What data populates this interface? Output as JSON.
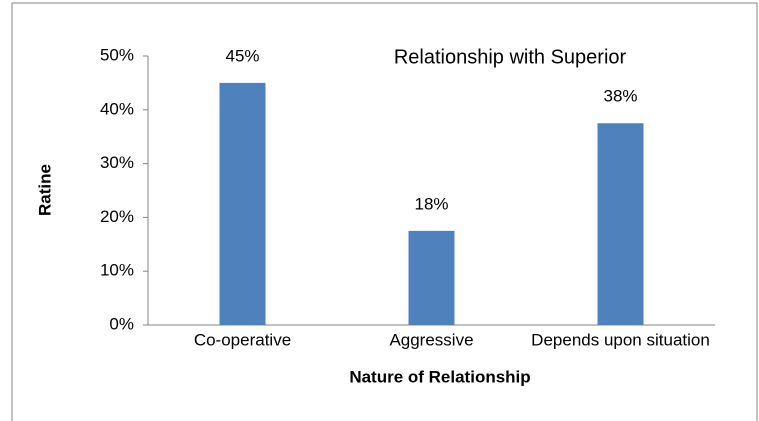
{
  "chart_data": {
    "type": "bar",
    "title": "Relationship with Superior",
    "x_label": "Nature of Relationship",
    "y_label": "Ratine",
    "categories": [
      "Co-operative",
      "Aggressive",
      "Depends upon situation"
    ],
    "values": [
      45,
      17.5,
      37.5
    ],
    "value_labels": [
      "45%",
      "18%",
      "38%"
    ],
    "color": "#4f81bd",
    "ylim": [
      0,
      50
    ],
    "yticks": [
      {
        "value": 0,
        "label": "0%"
      },
      {
        "value": 10,
        "label": "10%"
      },
      {
        "value": 20,
        "label": "20%"
      },
      {
        "value": 30,
        "label": "30%"
      },
      {
        "value": 40,
        "label": "40%"
      },
      {
        "value": 50,
        "label": "50%"
      }
    ],
    "grid": false
  }
}
